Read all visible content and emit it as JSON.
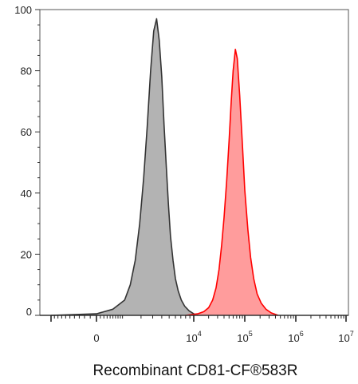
{
  "chart_data": {
    "type": "area",
    "title": "",
    "xlabel": "Recombinant CD81-CF®583R",
    "ylabel": "",
    "ylim": [
      0,
      100
    ],
    "y_ticks": [
      "0",
      "20",
      "40",
      "60",
      "80",
      "100"
    ],
    "x_scale": "biexponential",
    "x_ticks": [
      {
        "base": "0",
        "exp": ""
      },
      {
        "base": "10",
        "exp": "4"
      },
      {
        "base": "10",
        "exp": "5"
      },
      {
        "base": "10",
        "exp": "6"
      },
      {
        "base": "10",
        "exp": "7"
      }
    ],
    "grid": false,
    "series": [
      {
        "color_fill": "#b3b3b3",
        "color_line": "#333333",
        "x": [
          -1000,
          0,
          500,
          1000,
          1300,
          1600,
          1900,
          2200,
          2500,
          2800,
          3100,
          3400,
          3700,
          4000,
          4300,
          4600,
          4900,
          5200,
          5600,
          6000,
          6500,
          7100,
          7800,
          8800,
          10000,
          12000
        ],
        "values": [
          0,
          0.5,
          2,
          5,
          10,
          18,
          30,
          45,
          62,
          80,
          93,
          97,
          90,
          78,
          62,
          48,
          36,
          26,
          18,
          12,
          8,
          5,
          3,
          1.5,
          0.5,
          0
        ]
      },
      {
        "color_fill": "#ff9c9c",
        "color_line": "#ff0000",
        "x": [
          8000,
          12000,
          16000,
          20000,
          24000,
          28000,
          32000,
          36000,
          40000,
          45000,
          50000,
          55000,
          60000,
          66000,
          72000,
          80000,
          90000,
          100000,
          115000,
          130000,
          150000,
          175000,
          210000,
          260000,
          330000,
          450000
        ],
        "values": [
          0,
          0.5,
          1.2,
          2.5,
          5,
          9,
          15,
          23,
          32,
          44,
          57,
          70,
          80,
          87,
          84,
          72,
          56,
          41,
          28,
          19,
          12,
          7,
          4,
          2,
          0.8,
          0
        ]
      }
    ]
  }
}
